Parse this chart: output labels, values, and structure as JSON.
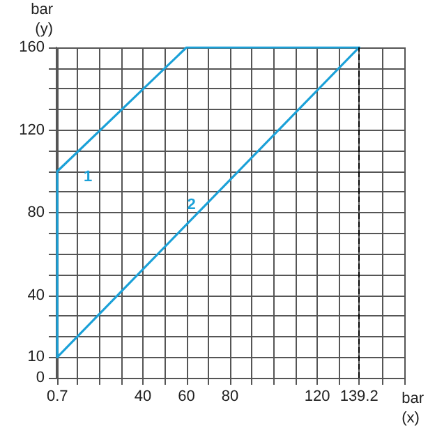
{
  "chart_data": {
    "type": "line",
    "xlabel": "bar\n(x)",
    "ylabel": "bar\n(y)",
    "xlim": [
      0,
      160
    ],
    "ylim": [
      0,
      160
    ],
    "xticks": [
      {
        "value": 0.7,
        "label": "0.7"
      },
      {
        "value": 10,
        "label": null
      },
      {
        "value": 20,
        "label": null
      },
      {
        "value": 30,
        "label": null
      },
      40,
      {
        "value": 50,
        "label": null
      },
      60,
      {
        "value": 70,
        "label": null
      },
      80,
      {
        "value": 90,
        "label": null
      },
      {
        "value": 100,
        "label": null
      },
      {
        "value": 110,
        "label": null
      },
      120,
      {
        "value": 130,
        "label": null
      },
      {
        "value": 139.2,
        "label": "139.2"
      },
      {
        "value": 150,
        "label": null
      },
      {
        "value": 160,
        "label": null
      }
    ],
    "yticks": [
      0,
      10,
      {
        "value": 20,
        "label": null
      },
      {
        "value": 30,
        "label": null
      },
      40,
      {
        "value": 50,
        "label": null
      },
      {
        "value": 60,
        "label": null
      },
      {
        "value": 70,
        "label": null
      },
      80,
      {
        "value": 90,
        "label": null
      },
      {
        "value": 100,
        "label": null
      },
      {
        "value": 110,
        "label": null
      },
      120,
      {
        "value": 130,
        "label": null
      },
      {
        "value": 140,
        "label": null
      },
      {
        "value": 150,
        "label": null
      },
      160
    ],
    "grid": true,
    "marker": "none",
    "line_style": "solid",
    "legend": false,
    "series": [
      {
        "name": "1",
        "color": "#1ba1d8",
        "x": [
          0.7,
          0.7,
          60,
          139.2
        ],
        "values": [
          10,
          100,
          160,
          160
        ]
      },
      {
        "name": "2",
        "color": "#1ba1d8",
        "x": [
          0.7,
          139.2
        ],
        "values": [
          10,
          160
        ]
      }
    ],
    "ref_lines": [
      {
        "axis": "x",
        "value": 139.2,
        "label": null,
        "color": "#000000",
        "line_style": "dashed"
      }
    ]
  }
}
